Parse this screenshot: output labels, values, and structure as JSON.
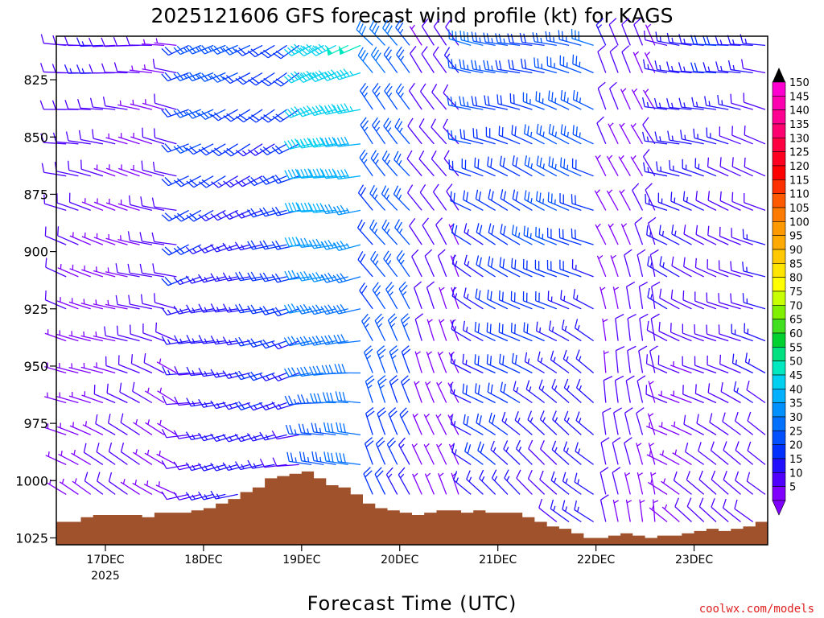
{
  "chart_data": {
    "type": "wind-barb-time-height",
    "title": "2025121606 GFS forecast wind profile (kt) for KAGS",
    "xlabel": "Forecast Time (UTC)",
    "ylabel": "",
    "credit": "coolwx.com/models",
    "y_ticks": [
      "825",
      "850",
      "875",
      "900",
      "925",
      "950",
      "975",
      "1000",
      "1025"
    ],
    "y_tick_values": [
      825,
      850,
      875,
      900,
      925,
      950,
      975,
      1000,
      1025
    ],
    "ylim_hpa": [
      806,
      1028
    ],
    "x_ticks": [
      "17DEC",
      "18DEC",
      "19DEC",
      "20DEC",
      "21DEC",
      "22DEC",
      "23DEC"
    ],
    "x_tick_day_offsets": [
      0.5,
      1.5,
      2.5,
      3.5,
      4.5,
      5.5,
      6.5
    ],
    "x_year_label": "2025",
    "xlim_days": [
      0,
      7.25
    ],
    "colorbar_labels": [
      "150",
      "145",
      "140",
      "135",
      "130",
      "125",
      "120",
      "115",
      "110",
      "105",
      "100",
      "95",
      "90",
      "85",
      "80",
      "75",
      "70",
      "65",
      "60",
      "55",
      "50",
      "45",
      "40",
      "35",
      "30",
      "25",
      "20",
      "15",
      "10",
      "5"
    ],
    "colorbar_colors": [
      "#ff00d0",
      "#ff00b0",
      "#ff0090",
      "#ff0070",
      "#ff0040",
      "#ff0020",
      "#ff0000",
      "#ff3000",
      "#ff5a00",
      "#ff7a00",
      "#ff9900",
      "#ffaa00",
      "#ffc800",
      "#ffe600",
      "#ffff00",
      "#c8ff00",
      "#80f000",
      "#40e020",
      "#00d030",
      "#00e080",
      "#00e8c0",
      "#00d0f0",
      "#00b0ff",
      "#0090ff",
      "#0070ff",
      "#0050ff",
      "#0030ff",
      "#2010ff",
      "#5000ff",
      "#8000ff"
    ],
    "pressure_levels": [
      810,
      822,
      838,
      853,
      867,
      882,
      897,
      911,
      925,
      939,
      953,
      966,
      980,
      993,
      1006,
      1018
    ],
    "time_step_days": 0.125,
    "wind_regimes": [
      {
        "until_day": 1.25,
        "dir_deg": 275,
        "speed_kt": 10
      },
      {
        "until_day": 2.5,
        "dir_deg": 240,
        "speed_kt": 22
      },
      {
        "until_day": 3.2,
        "dir_deg": 250,
        "speed_kt": 45
      },
      {
        "until_day": 3.6,
        "dir_deg": 315,
        "speed_kt": 30
      },
      {
        "until_day": 4.2,
        "dir_deg": 320,
        "speed_kt": 10
      },
      {
        "until_day": 5.5,
        "dir_deg": 285,
        "speed_kt": 25
      },
      {
        "until_day": 6.2,
        "dir_deg": 330,
        "speed_kt": 10
      },
      {
        "until_day": 7.25,
        "dir_deg": 280,
        "speed_kt": 15
      }
    ],
    "surface_pressure_hpa": [
      1018,
      1018,
      1016,
      1015,
      1015,
      1015,
      1015,
      1016,
      1014,
      1014,
      1014,
      1013,
      1012,
      1010,
      1008,
      1005,
      1003,
      999,
      998,
      997,
      996,
      999,
      1002,
      1003,
      1006,
      1010,
      1012,
      1013,
      1014,
      1015,
      1014,
      1013,
      1013,
      1014,
      1013,
      1014,
      1014,
      1014,
      1016,
      1018,
      1020,
      1021,
      1023,
      1025,
      1025,
      1024,
      1023,
      1024,
      1025,
      1024,
      1024,
      1023,
      1022,
      1021,
      1022,
      1021,
      1020,
      1018
    ],
    "terrain_color": "#a0522d"
  }
}
